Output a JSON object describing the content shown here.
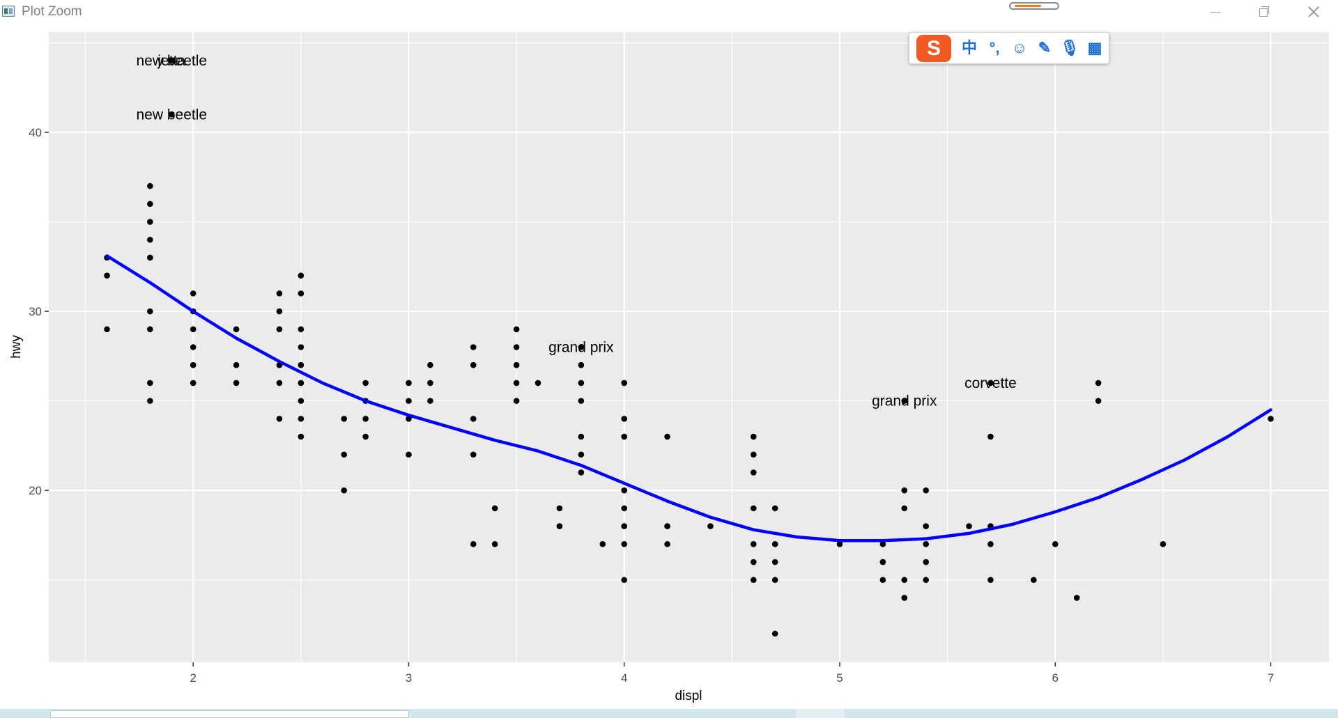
{
  "window": {
    "title": "Plot Zoom",
    "icon": "plot-window-icon",
    "controls": [
      "minimize-icon",
      "restore-icon",
      "close-icon"
    ]
  },
  "ime_toolbar": {
    "logo": "S",
    "tools": [
      {
        "name": "chinese-mode-icon",
        "glyph": "中"
      },
      {
        "name": "punctuation-icon",
        "glyph": "°,"
      },
      {
        "name": "emoji-icon",
        "glyph": "☺"
      },
      {
        "name": "pen-icon",
        "glyph": "✎"
      },
      {
        "name": "microphone-icon",
        "glyph": "🎙"
      },
      {
        "name": "toolbox-icon",
        "glyph": "▦"
      }
    ]
  },
  "colors": {
    "panel_background": "#ebebeb",
    "grid": "#ffffff",
    "points": "#000000",
    "smooth_line": "#0000ff",
    "ime_accent": "#f05a24"
  },
  "chart_data": {
    "type": "scatter",
    "xlabel": "displ",
    "ylabel": "hwy",
    "xlim": [
      1.33,
      7.27
    ],
    "ylim": [
      10.4,
      45.6
    ],
    "x_ticks": [
      2,
      3,
      4,
      5,
      6,
      7
    ],
    "y_ticks": [
      20,
      30,
      40
    ],
    "grid": true,
    "points": [
      [
        1.6,
        33
      ],
      [
        1.6,
        32
      ],
      [
        1.6,
        29
      ],
      [
        1.8,
        37
      ],
      [
        1.8,
        36
      ],
      [
        1.8,
        35
      ],
      [
        1.8,
        34
      ],
      [
        1.8,
        33
      ],
      [
        1.8,
        30
      ],
      [
        1.8,
        29
      ],
      [
        1.8,
        26
      ],
      [
        1.8,
        25
      ],
      [
        1.9,
        44
      ],
      [
        1.9,
        41
      ],
      [
        2.0,
        31
      ],
      [
        2.0,
        30
      ],
      [
        2.0,
        29
      ],
      [
        2.0,
        28
      ],
      [
        2.0,
        27
      ],
      [
        2.0,
        26
      ],
      [
        2.2,
        29
      ],
      [
        2.2,
        27
      ],
      [
        2.2,
        26
      ],
      [
        2.4,
        31
      ],
      [
        2.4,
        30
      ],
      [
        2.4,
        29
      ],
      [
        2.4,
        27
      ],
      [
        2.4,
        26
      ],
      [
        2.4,
        24
      ],
      [
        2.5,
        32
      ],
      [
        2.5,
        31
      ],
      [
        2.5,
        29
      ],
      [
        2.5,
        28
      ],
      [
        2.5,
        27
      ],
      [
        2.5,
        26
      ],
      [
        2.5,
        25
      ],
      [
        2.5,
        24
      ],
      [
        2.5,
        23
      ],
      [
        2.7,
        24
      ],
      [
        2.7,
        22
      ],
      [
        2.7,
        20
      ],
      [
        2.8,
        26
      ],
      [
        2.8,
        25
      ],
      [
        2.8,
        24
      ],
      [
        2.8,
        23
      ],
      [
        3.0,
        26
      ],
      [
        3.0,
        25
      ],
      [
        3.0,
        24
      ],
      [
        3.0,
        22
      ],
      [
        3.1,
        27
      ],
      [
        3.1,
        26
      ],
      [
        3.1,
        25
      ],
      [
        3.3,
        28
      ],
      [
        3.3,
        27
      ],
      [
        3.3,
        24
      ],
      [
        3.3,
        22
      ],
      [
        3.3,
        17
      ],
      [
        3.4,
        19
      ],
      [
        3.4,
        17
      ],
      [
        3.5,
        29
      ],
      [
        3.5,
        28
      ],
      [
        3.5,
        27
      ],
      [
        3.5,
        26
      ],
      [
        3.5,
        25
      ],
      [
        3.6,
        26
      ],
      [
        3.7,
        19
      ],
      [
        3.7,
        18
      ],
      [
        3.8,
        28
      ],
      [
        3.8,
        27
      ],
      [
        3.8,
        26
      ],
      [
        3.8,
        25
      ],
      [
        3.8,
        23
      ],
      [
        3.8,
        22
      ],
      [
        3.8,
        21
      ],
      [
        3.9,
        17
      ],
      [
        4.0,
        26
      ],
      [
        4.0,
        24
      ],
      [
        4.0,
        23
      ],
      [
        4.0,
        20
      ],
      [
        4.0,
        19
      ],
      [
        4.0,
        18
      ],
      [
        4.0,
        17
      ],
      [
        4.0,
        15
      ],
      [
        4.2,
        23
      ],
      [
        4.2,
        18
      ],
      [
        4.2,
        17
      ],
      [
        4.4,
        18
      ],
      [
        4.6,
        23
      ],
      [
        4.6,
        22
      ],
      [
        4.6,
        21
      ],
      [
        4.6,
        19
      ],
      [
        4.6,
        17
      ],
      [
        4.6,
        16
      ],
      [
        4.6,
        15
      ],
      [
        4.7,
        19
      ],
      [
        4.7,
        17
      ],
      [
        4.7,
        16
      ],
      [
        4.7,
        15
      ],
      [
        4.7,
        12
      ],
      [
        5.0,
        17
      ],
      [
        5.2,
        17
      ],
      [
        5.2,
        16
      ],
      [
        5.2,
        15
      ],
      [
        5.3,
        25
      ],
      [
        5.3,
        20
      ],
      [
        5.3,
        19
      ],
      [
        5.3,
        15
      ],
      [
        5.3,
        14
      ],
      [
        5.4,
        20
      ],
      [
        5.4,
        18
      ],
      [
        5.4,
        17
      ],
      [
        5.4,
        16
      ],
      [
        5.4,
        15
      ],
      [
        5.6,
        18
      ],
      [
        5.7,
        26
      ],
      [
        5.7,
        23
      ],
      [
        5.7,
        18
      ],
      [
        5.7,
        17
      ],
      [
        5.7,
        15
      ],
      [
        5.9,
        15
      ],
      [
        6.0,
        17
      ],
      [
        6.1,
        14
      ],
      [
        6.2,
        26
      ],
      [
        6.2,
        25
      ],
      [
        6.5,
        17
      ],
      [
        7.0,
        24
      ]
    ],
    "labels": [
      {
        "x": 1.9,
        "y": 44,
        "text": "new beetle"
      },
      {
        "x": 1.9,
        "y": 44,
        "text": "jetta"
      },
      {
        "x": 1.9,
        "y": 41,
        "text": "new beetle"
      },
      {
        "x": 3.8,
        "y": 28,
        "text": "grand prix"
      },
      {
        "x": 5.7,
        "y": 26,
        "text": "corvette"
      },
      {
        "x": 5.3,
        "y": 25,
        "text": "grand prix"
      }
    ],
    "smooth": [
      [
        1.6,
        33.1
      ],
      [
        1.8,
        31.6
      ],
      [
        2.0,
        30.0
      ],
      [
        2.2,
        28.5
      ],
      [
        2.4,
        27.2
      ],
      [
        2.6,
        26.0
      ],
      [
        2.8,
        25.0
      ],
      [
        3.0,
        24.2
      ],
      [
        3.2,
        23.5
      ],
      [
        3.4,
        22.8
      ],
      [
        3.6,
        22.2
      ],
      [
        3.8,
        21.4
      ],
      [
        4.0,
        20.4
      ],
      [
        4.2,
        19.4
      ],
      [
        4.4,
        18.5
      ],
      [
        4.6,
        17.8
      ],
      [
        4.8,
        17.4
      ],
      [
        5.0,
        17.2
      ],
      [
        5.2,
        17.2
      ],
      [
        5.4,
        17.3
      ],
      [
        5.6,
        17.6
      ],
      [
        5.8,
        18.1
      ],
      [
        6.0,
        18.8
      ],
      [
        6.2,
        19.6
      ],
      [
        6.4,
        20.6
      ],
      [
        6.6,
        21.7
      ],
      [
        6.8,
        23.0
      ],
      [
        7.0,
        24.5
      ]
    ]
  }
}
